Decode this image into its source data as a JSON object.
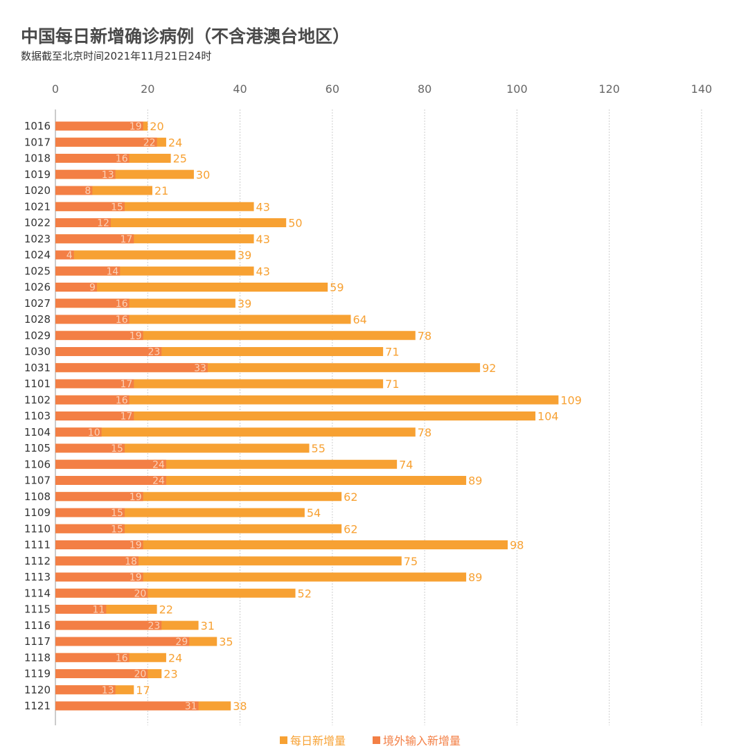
{
  "title": "中国每日新增确诊病例（不含港澳台地区）",
  "subtitle": "数据截至北京时间2021年11月21日24时",
  "colors": {
    "total": "#f7a133",
    "imported": "#f37f45",
    "axis_text": "#666666",
    "grid": "#cccccc"
  },
  "chart_data": {
    "type": "bar",
    "orientation": "horizontal",
    "stacked": "overlay",
    "xlim": [
      0,
      140
    ],
    "xticks": [
      0,
      20,
      40,
      60,
      80,
      100,
      120,
      140
    ],
    "x_axis_position": "top",
    "grid": true,
    "legend_position": "bottom-center",
    "categories": [
      "1016",
      "1017",
      "1018",
      "1019",
      "1020",
      "1021",
      "1022",
      "1023",
      "1024",
      "1025",
      "1026",
      "1027",
      "1028",
      "1029",
      "1030",
      "1031",
      "1101",
      "1102",
      "1103",
      "1104",
      "1105",
      "1106",
      "1107",
      "1108",
      "1109",
      "1110",
      "1111",
      "1112",
      "1113",
      "1114",
      "1115",
      "1116",
      "1117",
      "1118",
      "1119",
      "1120",
      "1121"
    ],
    "series": [
      {
        "name": "每日新增量",
        "color": "#f7a133",
        "values": [
          20,
          24,
          25,
          30,
          21,
          43,
          50,
          43,
          39,
          43,
          59,
          39,
          64,
          78,
          71,
          92,
          71,
          109,
          104,
          78,
          55,
          74,
          89,
          62,
          54,
          62,
          98,
          75,
          89,
          52,
          22,
          31,
          35,
          24,
          23,
          17,
          38
        ]
      },
      {
        "name": "境外输入新增量",
        "color": "#f37f45",
        "values": [
          19,
          22,
          16,
          13,
          8,
          15,
          12,
          17,
          4,
          14,
          9,
          16,
          16,
          19,
          23,
          33,
          17,
          16,
          17,
          10,
          15,
          24,
          24,
          19,
          15,
          15,
          19,
          18,
          19,
          20,
          11,
          23,
          29,
          16,
          20,
          13,
          31
        ]
      }
    ]
  }
}
